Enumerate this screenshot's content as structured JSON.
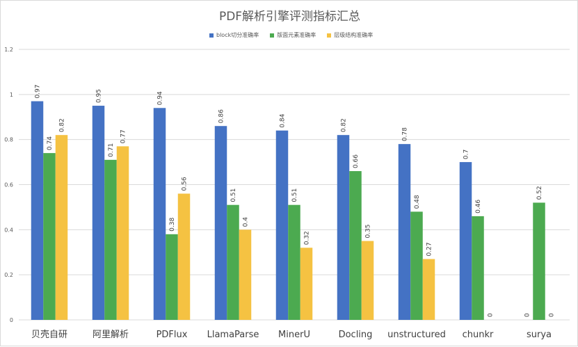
{
  "chart_data": {
    "type": "bar",
    "title": "PDF解析引擎评测指标汇总",
    "xlabel": "",
    "ylabel": "",
    "ylim": [
      0,
      1.2
    ],
    "yticks": [
      "0",
      "0.2",
      "0.4",
      "0.6",
      "0.8",
      "1",
      "1.2"
    ],
    "grid": true,
    "legend_position": "top",
    "categories": [
      "贝壳自研",
      "阿里解析",
      "PDFlux",
      "LlamaParse",
      "MinerU",
      "Docling",
      "unstructured",
      "chunkr",
      "surya"
    ],
    "series": [
      {
        "name": "block切分准确率",
        "color": "#4472c4",
        "values": [
          0.97,
          0.95,
          0.94,
          0.86,
          0.84,
          0.82,
          0.78,
          0.7,
          0
        ],
        "labels": [
          "0.97",
          "0.95",
          "0.94",
          "0.86",
          "0.84",
          "0.82",
          "0.78",
          "0.7",
          "0"
        ]
      },
      {
        "name": "版面元素准确率",
        "color": "#4caa50",
        "values": [
          0.74,
          0.71,
          0.38,
          0.51,
          0.51,
          0.66,
          0.48,
          0.46,
          0.52
        ],
        "labels": [
          "0.74",
          "0.71",
          "0.38",
          "0.51",
          "0.51",
          "0.66",
          "0.48",
          "0.46",
          "0.52"
        ]
      },
      {
        "name": "层级结构准确率",
        "color": "#f5c242",
        "values": [
          0.82,
          0.77,
          0.56,
          0.4,
          0.32,
          0.35,
          0.27,
          0,
          0
        ],
        "labels": [
          "0.82",
          "0.77",
          "0.56",
          "0.4",
          "0.32",
          "0.35",
          "0.27",
          "0",
          "0"
        ]
      }
    ]
  }
}
